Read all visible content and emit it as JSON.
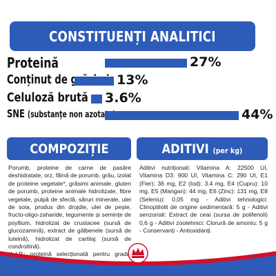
{
  "banner": {
    "title": "CONSTITUENȚI ANALITICI"
  },
  "analytics": [
    {
      "label": "Proteină",
      "value": "27%",
      "fraction": 0.27
    },
    {
      "label": "Conținut de grăsimi",
      "value": "13%",
      "fraction": 0.13
    },
    {
      "label": "Celuloză brută",
      "value": "3.6%",
      "fraction": 0.036
    },
    {
      "label_main": "SNE",
      "label_sub": "(substanțe non azotate)",
      "value": "44%",
      "fraction": 0.44
    }
  ],
  "composition": {
    "title": "COMPOZIȚIE",
    "text": "Porumb, proteine de carne de pasăre deshidratate, orz, făină de porumb, grâu, izolat de proteine vegetale*, grăsimi animale, gluten de porumb, proteine animale hidrolizate, fibre vegetale, pulpă de sfeclă, săruri minerale, ulei de soia, produs din drojdie, ulei de pește, fructo-oligo-zaharide, tegumente și semințe de psyllium, hidrolizat de crustacee (sursă de glucozamină), extract de gălbenele (sursă de luteină), hidrolizat de cartilaj (sursă de condroitină).",
    "footnote": "*L.I.P.: proteină selecționată pentru gradul înalt de digestibilitate."
  },
  "additives": {
    "title": "ADITIVI",
    "subtitle": "(per kg)",
    "text": "Aditivi nutriționali: Vitamina A: 22500 UI, Vitamina D3: 900 UI, Vitamina C: 290 UI, E1 (Fier): 36 mg, E2 (Iod): 3.4 mg, E4 (Cupru): 10 mg, E5 (Mangan): 44 mg, E6 (Zinc): 131 mg, E8 (Seleniu): 0,05 mg - Aditivi tehnologici: Clinoptilolit de origine sedimentară: 5 g - Aditivi senzoriali: Extract de ceai (sursa de polifenoli) 0,6 g - Aditivi zootehnici: Clorură de amoniu: 5 g - Conservanți - Antioxidanți."
  },
  "colors": {
    "brand_blue": "#2d5bb8",
    "brand_red": "#d0112b",
    "text": "#111111"
  },
  "icons": {
    "logo": "royal-canin-crown-logo"
  }
}
